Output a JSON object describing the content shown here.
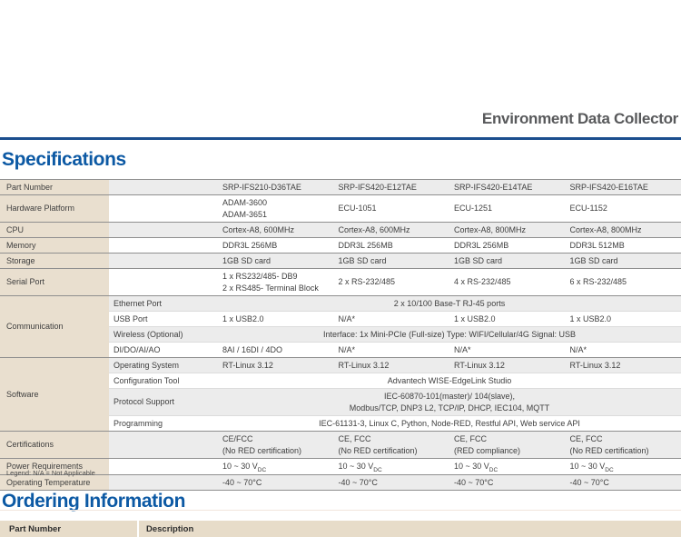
{
  "page": {
    "title": "Environment Data Collector",
    "spec_section_title": "Specifications",
    "ordering_section_title": "Ordering Information",
    "legend": "Legend: N/A = Not Applicable"
  },
  "colors": {
    "heading_blue": "#0c59a4",
    "rule_navy": "#1b4e8e",
    "label_beige": "#e9dfcf",
    "stripe_gray": "#ececec",
    "title_gray": "#58595b"
  },
  "spec_table": {
    "groups": [
      {
        "label": "Part Number",
        "rows": [
          {
            "cells": [
              [
                "SRP-IFS210-D36TAE"
              ],
              [
                "SRP-IFS420-E12TAE"
              ],
              [
                "SRP-IFS420-E14TAE"
              ],
              [
                "SRP-IFS420-E16TAE"
              ]
            ]
          }
        ]
      },
      {
        "label": "Hardware Platform",
        "rows": [
          {
            "cells": [
              [
                "ADAM-3600",
                "ADAM-3651"
              ],
              [
                "ECU-1051"
              ],
              [
                "ECU-1251"
              ],
              [
                "ECU-1152"
              ]
            ]
          }
        ]
      },
      {
        "label": "CPU",
        "rows": [
          {
            "cells": [
              [
                "Cortex-A8, 600MHz"
              ],
              [
                "Cortex-A8, 600MHz"
              ],
              [
                "Cortex-A8, 800MHz"
              ],
              [
                "Cortex-A8, 800MHz"
              ]
            ]
          }
        ]
      },
      {
        "label": "Memory",
        "rows": [
          {
            "cells": [
              [
                "DDR3L 256MB"
              ],
              [
                "DDR3L 256MB"
              ],
              [
                "DDR3L 256MB"
              ],
              [
                "DDR3L 512MB"
              ]
            ]
          }
        ]
      },
      {
        "label": "Storage",
        "rows": [
          {
            "cells": [
              [
                "1GB SD card"
              ],
              [
                "1GB SD card"
              ],
              [
                "1GB SD card"
              ],
              [
                "1GB SD card"
              ]
            ]
          }
        ]
      },
      {
        "label": "Serial Port",
        "rows": [
          {
            "cells": [
              [
                "1 x RS232/485- DB9",
                "2 x RS485- Terminal Block"
              ],
              [
                "2 x RS-232/485"
              ],
              [
                "4 x RS-232/485"
              ],
              [
                "6 x RS-232/485"
              ]
            ]
          }
        ]
      },
      {
        "label": "Communication",
        "rows": [
          {
            "sub": "Ethernet Port",
            "span": [
              "2 x 10/100 Base-T RJ-45 ports"
            ]
          },
          {
            "sub": "USB Port",
            "cells": [
              [
                "1 x USB2.0"
              ],
              [
                "N/A*"
              ],
              [
                "1 x USB2.0"
              ],
              [
                "1 x USB2.0"
              ]
            ]
          },
          {
            "sub": "Wireless (Optional)",
            "span": [
              "Interface: 1x Mini-PCIe (Full-size) Type: WIFI/Cellular/4G Signal: USB"
            ]
          },
          {
            "sub": "DI/DO/AI/AO",
            "cells": [
              [
                "8AI / 16DI / 4DO"
              ],
              [
                "N/A*"
              ],
              [
                "N/A*"
              ],
              [
                "N/A*"
              ]
            ]
          }
        ]
      },
      {
        "label": "Software",
        "rows": [
          {
            "sub": "Operating System",
            "cells": [
              [
                "RT-Linux 3.12"
              ],
              [
                "RT-Linux 3.12"
              ],
              [
                "RT-Linux 3.12"
              ],
              [
                "RT-Linux 3.12"
              ]
            ]
          },
          {
            "sub": "Configuration Tool",
            "span": [
              "Advantech WISE-EdgeLink Studio"
            ]
          },
          {
            "sub": "Protocol Support",
            "span": [
              "IEC-60870-101(master)/ 104(slave),",
              "Modbus/TCP, DNP3 L2, TCP/IP, DHCP, IEC104, MQTT"
            ]
          },
          {
            "sub": "Programming",
            "span": [
              "IEC-61131-3, Linux C, Python, Node-RED, Restful API, Web service API"
            ]
          }
        ]
      },
      {
        "label": "Certifications",
        "rows": [
          {
            "cells": [
              [
                "CE/FCC",
                "(No RED certification)"
              ],
              [
                "CE, FCC",
                "(No RED certification)"
              ],
              [
                "CE, FCC",
                "(RED compliance)"
              ],
              [
                "CE, FCC",
                "(No RED certification)"
              ]
            ]
          }
        ]
      },
      {
        "label": "Power Requirements",
        "rows": [
          {
            "cells": [
              [
                "10 ~ 30 V{DC}"
              ],
              [
                "10 ~ 30 V{DC}"
              ],
              [
                "10 ~ 30 V{DC}"
              ],
              [
                "10 ~ 30 V{DC}"
              ]
            ]
          }
        ]
      },
      {
        "label": "Operating Temperature",
        "rows": [
          {
            "cells": [
              [
                "-40 ~ 70°C"
              ],
              [
                "-40 ~ 70°C"
              ],
              [
                "-40 ~ 70°C"
              ],
              [
                "-40 ~ 70°C"
              ]
            ]
          }
        ]
      }
    ]
  },
  "ordering_table": {
    "headers": [
      "Part Number",
      "Description"
    ]
  }
}
